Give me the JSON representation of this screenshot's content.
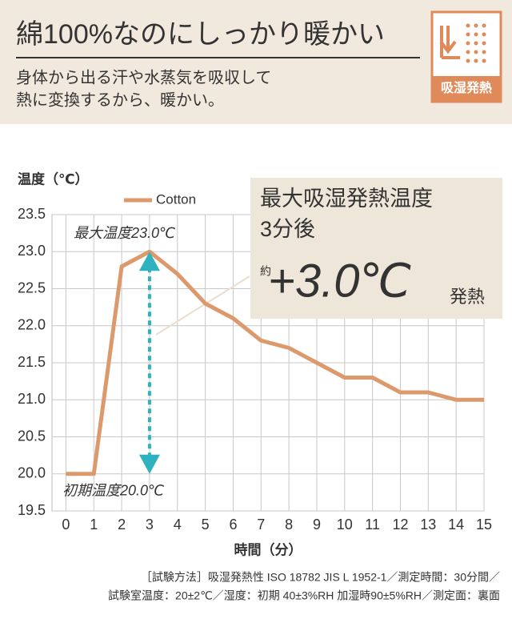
{
  "header": {
    "title": "綿100%なのにしっかり暖かい",
    "subtitle": [
      "身体から出る汗や水蒸気を吸収して",
      "熱に変換するから、暖かい。"
    ],
    "icon_label": "吸湿発熱"
  },
  "chart_data": {
    "type": "line",
    "y_label": "温度（℃）",
    "x_label": "時間（分）",
    "x": [
      0,
      1,
      2,
      3,
      4,
      5,
      6,
      7,
      8,
      9,
      10,
      11,
      12,
      13,
      14,
      15
    ],
    "series": [
      {
        "name": "Cotton",
        "color": "#dc9a6c",
        "values": [
          20.0,
          20.0,
          22.8,
          23.0,
          22.7,
          22.3,
          22.1,
          21.8,
          21.7,
          21.5,
          21.3,
          21.3,
          21.1,
          21.1,
          21.0,
          21.0
        ]
      }
    ],
    "xlim": [
      -0.5,
      15
    ],
    "ylim": [
      19.5,
      23.5
    ],
    "xticks": [
      0,
      1,
      2,
      3,
      4,
      5,
      6,
      7,
      8,
      9,
      10,
      11,
      12,
      13,
      14,
      15
    ],
    "yticks": [
      19.5,
      {
        "value": 20,
        "label": "20.0"
      },
      20.5,
      {
        "value": 21,
        "label": "21.0"
      },
      21.5,
      {
        "value": 22,
        "label": "22.0"
      },
      22.5,
      {
        "value": 23,
        "label": "23.0"
      },
      23.5
    ],
    "grid": true,
    "annotations": {
      "max": "最大温度23.0℃",
      "initial": "初期温度20.0℃",
      "box_line1": "最大吸湿発熱温度",
      "box_line2": "3分後",
      "about": "約",
      "rise": "+3.0℃",
      "rise_suffix": "発熱"
    }
  },
  "footnote": [
    "［試験方法］吸湿発熱性 ISO 18782 JIS L 1952-1／測定時間：30分間／",
    "試験室温度：20±2℃／湿度：初期 40±3%RH 加湿時90±5%RH／測定面：裏面"
  ]
}
